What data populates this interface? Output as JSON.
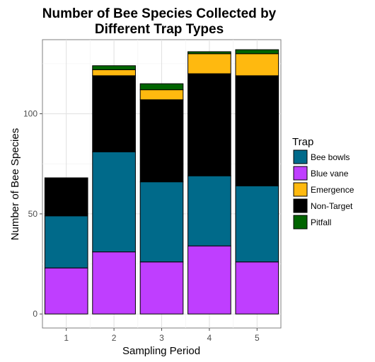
{
  "chart_data": {
    "type": "bar",
    "stacked": true,
    "title": [
      "Number of Bee Species Collected by",
      "Different Trap Types"
    ],
    "xlabel": "Sampling Period",
    "ylabel": "Number of Bee Species",
    "categories": [
      "1",
      "2",
      "3",
      "4",
      "5"
    ],
    "ylim": [
      -7,
      137
    ],
    "yticks": [
      0,
      50,
      100
    ],
    "grid": true,
    "legend_title": "Trap",
    "legend_position": "right",
    "series": [
      {
        "name": "Blue vane",
        "color": "#bf3eff",
        "values": [
          23,
          31,
          26,
          34,
          26
        ]
      },
      {
        "name": "Bee bowls",
        "color": "#006a8a",
        "values": [
          26,
          50,
          40,
          35,
          38
        ]
      },
      {
        "name": "Non-Target",
        "color": "#000000",
        "values": [
          19,
          38,
          41,
          51,
          55
        ]
      },
      {
        "name": "Emergence",
        "color": "#ffb90f",
        "values": [
          0,
          3,
          5,
          10,
          11
        ]
      },
      {
        "name": "Pitfall",
        "color": "#006400",
        "values": [
          0,
          2,
          3,
          1,
          2
        ]
      }
    ],
    "legend_order": [
      "Bee bowls",
      "Blue vane",
      "Emergence",
      "Non-Target",
      "Pitfall"
    ]
  }
}
